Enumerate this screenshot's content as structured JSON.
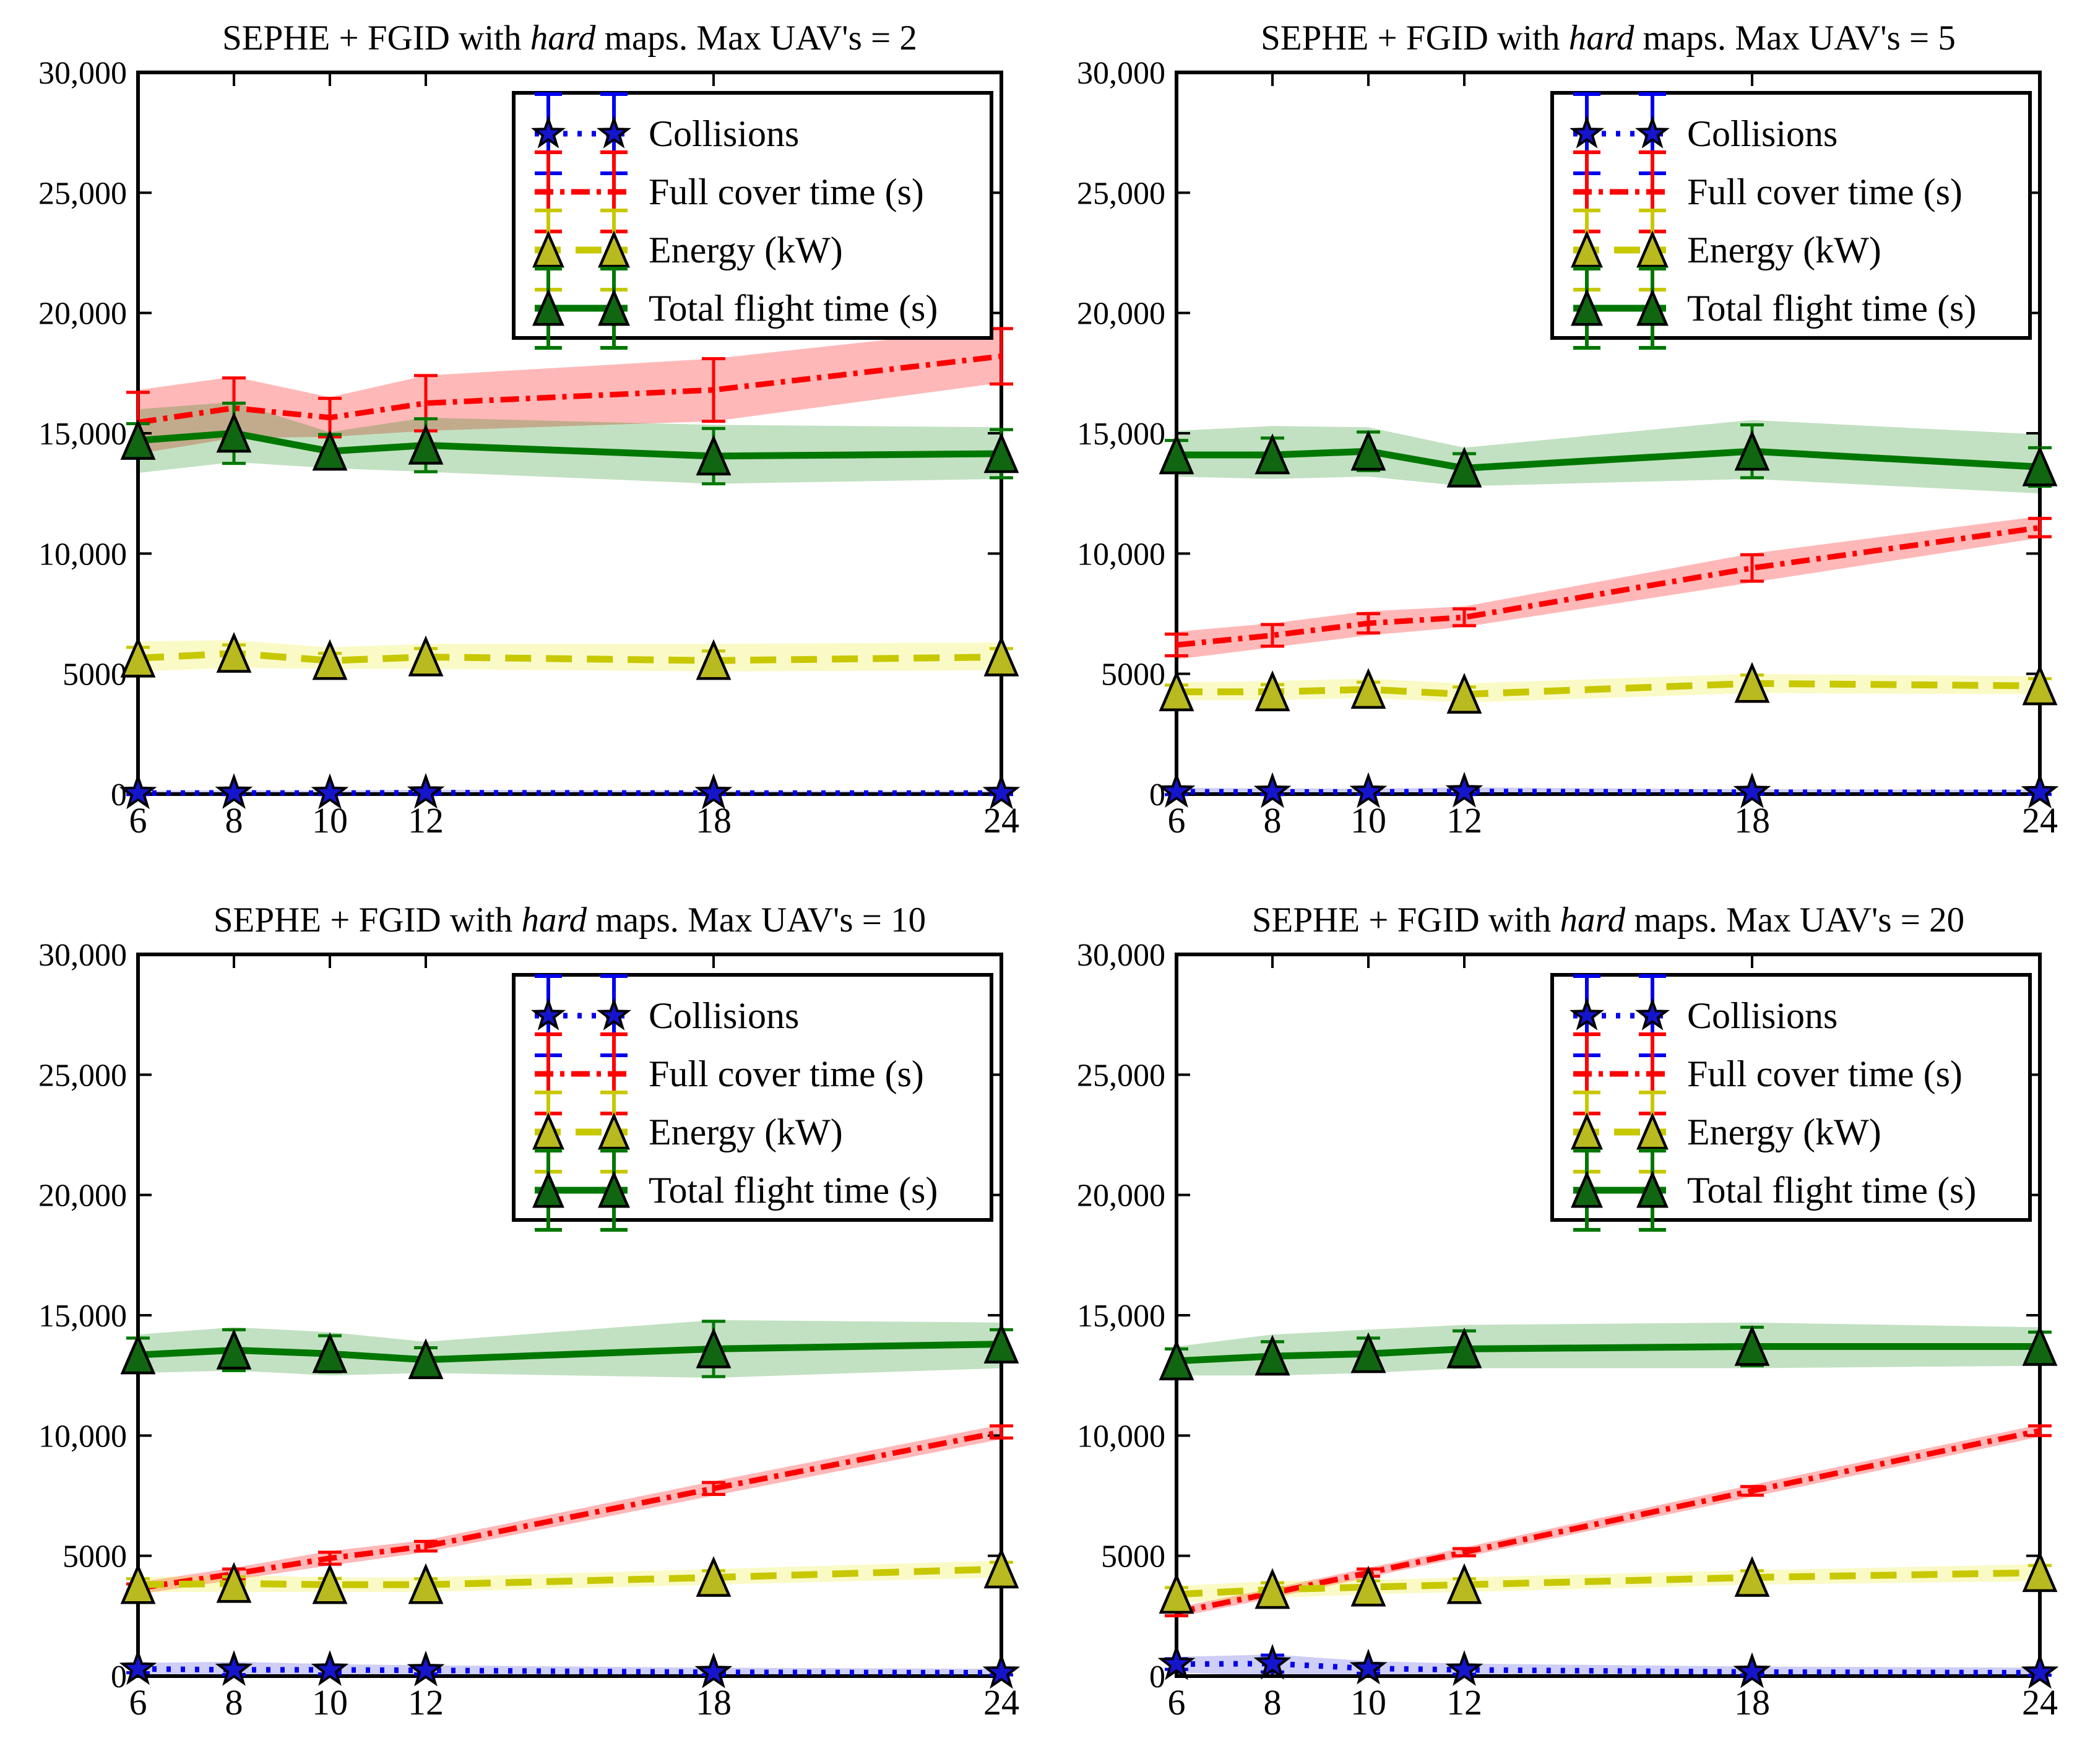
{
  "figure": {
    "background": "#ffffff"
  },
  "chart_common": {
    "type": "line-with-error-bars-and-bands",
    "x_label": "",
    "y_label": "",
    "axes": {
      "x": {
        "min": 6,
        "max": 24,
        "ticks": [
          6,
          8,
          10,
          12,
          18,
          24
        ],
        "tick_labels": [
          "6",
          "8",
          "10",
          "12",
          "18",
          "24"
        ]
      },
      "y": {
        "min": 0,
        "max": 30000,
        "ticks": [
          0,
          5000,
          10000,
          15000,
          20000,
          25000,
          30000
        ],
        "tick_labels": [
          "0",
          "5000",
          "10,000",
          "15,000",
          "20,000",
          "25,000",
          "30,000"
        ]
      }
    },
    "grid": "off",
    "legend_position": "upper right",
    "legend": {
      "items": [
        {
          "key": "collisions",
          "label": "Collisions"
        },
        {
          "key": "full_cover",
          "label": "Full cover time (s)"
        },
        {
          "key": "energy",
          "label": "Energy (kW)"
        },
        {
          "key": "total_flight",
          "label": "Total flight time (s)"
        }
      ]
    },
    "series_order": [
      "collisions",
      "full_cover",
      "energy",
      "total_flight"
    ],
    "series_meta": {
      "collisions": {
        "label": "Collisions",
        "color": "#0000ee",
        "band_color": "#3c3cdc",
        "marker": "star",
        "marker_fill": "#1515cd",
        "linestyle": "dotted"
      },
      "full_cover": {
        "label": "Full cover time (s)",
        "color": "#ff0000",
        "band_color": "#ff0000",
        "marker": "none",
        "marker_fill": "#ff0000",
        "linestyle": "dashdot"
      },
      "energy": {
        "label": "Energy (kW)",
        "color": "#c8c800",
        "band_color": "#e6e600",
        "marker": "triangle",
        "marker_fill": "#b9b920",
        "linestyle": "dashed"
      },
      "total_flight": {
        "label": "Total flight time (s)",
        "color": "#007700",
        "band_color": "#008000",
        "marker": "triangle",
        "marker_fill": "#116611",
        "linestyle": "solid"
      }
    }
  },
  "chart_data": [
    {
      "title": "SEPHE + FGID with hard maps. Max UAV's = 2",
      "title_parts": [
        "SEPHE + FGID with ",
        "hard",
        " maps. Max UAV's = 2"
      ],
      "x": [
        6,
        8,
        10,
        12,
        18,
        24
      ],
      "series": {
        "collisions": {
          "mean": [
            40,
            50,
            40,
            60,
            40,
            40
          ],
          "err": [
            60,
            70,
            60,
            80,
            60,
            60
          ],
          "band_lo": [
            0,
            0,
            0,
            0,
            0,
            0
          ],
          "band_hi": [
            140,
            160,
            140,
            180,
            140,
            140
          ]
        },
        "full_cover": {
          "mean": [
            15450,
            16050,
            15650,
            16250,
            16800,
            18200
          ],
          "err": [
            1250,
            1250,
            800,
            1150,
            1300,
            1150
          ],
          "band_lo": [
            14150,
            14800,
            14850,
            15100,
            15500,
            17100
          ],
          "band_hi": [
            16800,
            17350,
            16500,
            17400,
            18100,
            19400
          ]
        },
        "energy": {
          "mean": [
            5650,
            5850,
            5550,
            5700,
            5550,
            5700
          ],
          "err": [
            450,
            350,
            300,
            350,
            400,
            350
          ],
          "band_lo": [
            5100,
            5250,
            5200,
            5200,
            5100,
            5150
          ],
          "band_hi": [
            6350,
            6400,
            6100,
            6250,
            6250,
            6300
          ]
        },
        "total_flight": {
          "mean": [
            14700,
            15000,
            14250,
            14500,
            14050,
            14150
          ],
          "err": [
            700,
            1250,
            700,
            1100,
            1150,
            1000
          ],
          "band_lo": [
            13350,
            13800,
            13550,
            13400,
            12900,
            13100
          ],
          "band_hi": [
            16000,
            16300,
            15050,
            15650,
            15350,
            15250
          ]
        }
      }
    },
    {
      "title": "SEPHE + FGID with hard maps. Max UAV's = 5",
      "title_parts": [
        "SEPHE + FGID with ",
        "hard",
        " maps. Max UAV's = 5"
      ],
      "x": [
        6,
        8,
        10,
        12,
        18,
        24
      ],
      "series": {
        "collisions": {
          "mean": [
            100,
            90,
            90,
            110,
            80,
            70
          ],
          "err": [
            120,
            110,
            100,
            130,
            90,
            80
          ],
          "band_lo": [
            0,
            0,
            0,
            0,
            0,
            0
          ],
          "band_hi": [
            260,
            240,
            220,
            280,
            200,
            180
          ]
        },
        "full_cover": {
          "mean": [
            6200,
            6600,
            7100,
            7350,
            9400,
            11080
          ],
          "err": [
            450,
            450,
            400,
            350,
            550,
            380
          ],
          "band_lo": [
            5600,
            6100,
            6600,
            6950,
            8800,
            10650
          ],
          "band_hi": [
            6750,
            7100,
            7600,
            7800,
            10000,
            11550
          ]
        },
        "energy": {
          "mean": [
            4250,
            4250,
            4350,
            4150,
            4600,
            4500
          ],
          "err": [
            280,
            300,
            300,
            300,
            350,
            300
          ],
          "band_lo": [
            3900,
            3900,
            4000,
            3800,
            4200,
            4150
          ],
          "band_hi": [
            4650,
            4700,
            4800,
            4600,
            5000,
            4900
          ]
        },
        "total_flight": {
          "mean": [
            14100,
            14100,
            14250,
            13550,
            14250,
            13600
          ],
          "err": [
            600,
            700,
            800,
            600,
            1100,
            800
          ],
          "band_lo": [
            13200,
            13100,
            13200,
            12800,
            13100,
            12500
          ],
          "band_hi": [
            15100,
            15300,
            15250,
            14400,
            15550,
            14950
          ]
        }
      }
    },
    {
      "title": "SEPHE + FGID with hard maps. Max UAV's = 10",
      "title_parts": [
        "SEPHE + FGID with ",
        "hard",
        " maps. Max UAV's = 10"
      ],
      "x": [
        6,
        8,
        10,
        12,
        18,
        24
      ],
      "series": {
        "collisions": {
          "mean": [
            300,
            260,
            260,
            240,
            160,
            140
          ],
          "err": [
            160,
            200,
            170,
            150,
            100,
            90
          ],
          "band_lo": [
            0,
            0,
            0,
            0,
            0,
            0
          ],
          "band_hi": [
            550,
            600,
            500,
            450,
            350,
            300
          ]
        },
        "full_cover": {
          "mean": [
            3650,
            4250,
            4900,
            5400,
            7800,
            10150
          ],
          "err": [
            180,
            200,
            250,
            200,
            250,
            250
          ],
          "band_lo": [
            3400,
            4000,
            4600,
            5150,
            7500,
            9850
          ],
          "band_hi": [
            3900,
            4500,
            5200,
            5650,
            8100,
            10450
          ]
        },
        "energy": {
          "mean": [
            3800,
            3850,
            3800,
            3800,
            4100,
            4450
          ],
          "err": [
            250,
            280,
            260,
            250,
            280,
            280
          ],
          "band_lo": [
            3500,
            3500,
            3500,
            3500,
            3800,
            4100
          ],
          "band_hi": [
            4100,
            4200,
            4100,
            4100,
            4450,
            4800
          ]
        },
        "total_flight": {
          "mean": [
            13350,
            13550,
            13400,
            13150,
            13600,
            13800
          ],
          "err": [
            700,
            850,
            750,
            500,
            1150,
            600
          ],
          "band_lo": [
            12600,
            12700,
            12500,
            12600,
            12400,
            12800
          ],
          "band_hi": [
            14200,
            14500,
            14300,
            13900,
            14800,
            14700
          ]
        }
      }
    },
    {
      "title": "SEPHE + FGID with hard maps. Max UAV's = 20",
      "title_parts": [
        "SEPHE + FGID with ",
        "hard",
        " maps. Max UAV's = 20"
      ],
      "x": [
        6,
        8,
        10,
        12,
        18,
        24
      ],
      "series": {
        "collisions": {
          "mean": [
            500,
            520,
            320,
            260,
            170,
            140
          ],
          "err": [
            220,
            350,
            200,
            180,
            120,
            100
          ],
          "band_lo": [
            150,
            0,
            0,
            0,
            0,
            0
          ],
          "band_hi": [
            800,
            900,
            620,
            520,
            400,
            350
          ]
        },
        "full_cover": {
          "mean": [
            2650,
            3450,
            4300,
            5150,
            7700,
            10200
          ],
          "err": [
            140,
            130,
            150,
            150,
            180,
            200
          ],
          "band_lo": [
            2450,
            3250,
            4100,
            4950,
            7450,
            9950
          ],
          "band_hi": [
            2850,
            3650,
            4500,
            5350,
            7950,
            10450
          ]
        },
        "energy": {
          "mean": [
            3400,
            3600,
            3700,
            3800,
            4100,
            4300
          ],
          "err": [
            280,
            280,
            260,
            250,
            280,
            300
          ],
          "band_lo": [
            3050,
            3250,
            3400,
            3500,
            3800,
            3950
          ],
          "band_hi": [
            3750,
            3950,
            4000,
            4100,
            4400,
            4650
          ]
        },
        "total_flight": {
          "mean": [
            13100,
            13300,
            13400,
            13600,
            13700,
            13700
          ],
          "err": [
            500,
            600,
            650,
            750,
            800,
            600
          ],
          "band_lo": [
            12500,
            12500,
            12600,
            12800,
            12800,
            12900
          ],
          "band_hi": [
            13700,
            14200,
            14400,
            14600,
            14700,
            14500
          ]
        }
      }
    }
  ]
}
